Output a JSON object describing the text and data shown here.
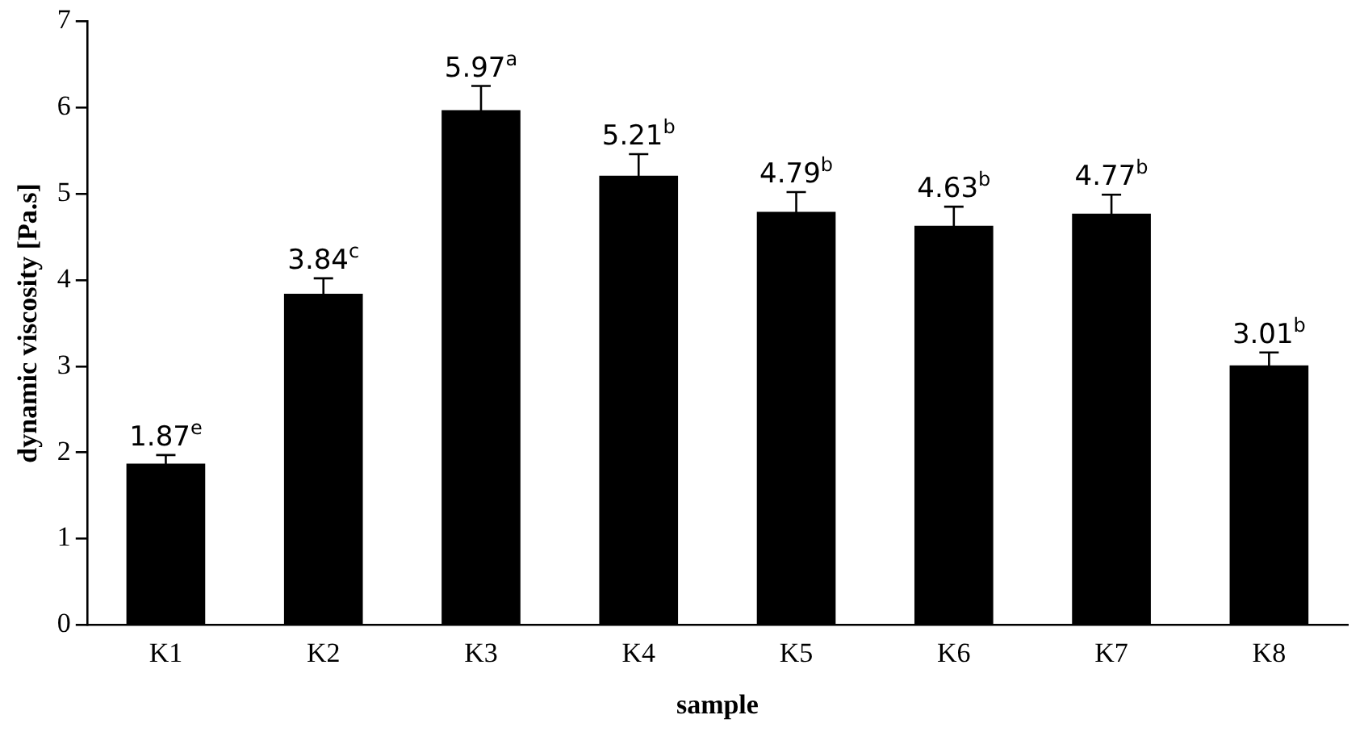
{
  "chart_data": {
    "type": "bar",
    "xlabel": "sample",
    "ylabel": "dynamic viscosity [Pa.s]",
    "categories": [
      "K1",
      "K2",
      "K3",
      "K4",
      "K5",
      "K6",
      "K7",
      "K8"
    ],
    "values": [
      1.87,
      3.84,
      5.97,
      5.21,
      4.79,
      4.63,
      4.77,
      3.01
    ],
    "errors": [
      0.1,
      0.18,
      0.28,
      0.25,
      0.23,
      0.22,
      0.22,
      0.15
    ],
    "value_labels": [
      "1.87$^{e}$",
      "3.84$^{c}$",
      "5.97$^{a}$",
      "5.21$^{b}$",
      "4.79$^{b}$",
      "4.63$^{b}$",
      "4.77$^{b}$",
      "3.01$^{b}$"
    ],
    "color": "#000000",
    "ylim": [
      0,
      7
    ],
    "yticks": [
      0,
      1,
      2,
      3,
      4,
      5,
      6,
      7
    ],
    "grid": false,
    "legend": false
  }
}
